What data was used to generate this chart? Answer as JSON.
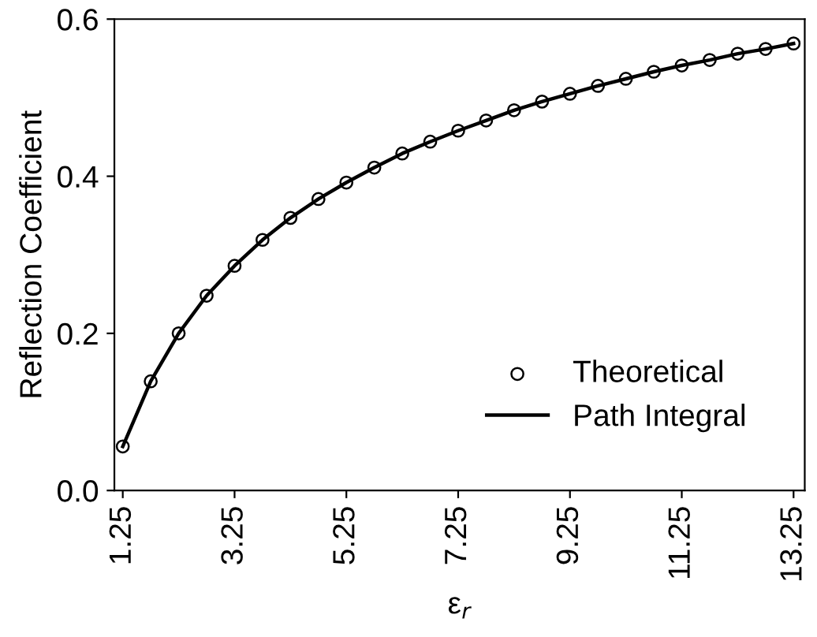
{
  "chart_data": {
    "type": "line",
    "xlabel": "ε$_{r}$",
    "ylabel": "Reflection Coefficient",
    "x": [
      1.25,
      1.75,
      2.25,
      2.75,
      3.25,
      3.75,
      4.25,
      4.75,
      5.25,
      5.75,
      6.25,
      6.75,
      7.25,
      7.75,
      8.25,
      8.75,
      9.25,
      9.75,
      10.25,
      10.75,
      11.25,
      11.75,
      12.25,
      12.75,
      13.25
    ],
    "series": [
      {
        "name": "Theoretical",
        "type": "scatter",
        "marker": "circle",
        "color": "#000000",
        "values": [
          0.056,
          0.139,
          0.2,
          0.248,
          0.286,
          0.319,
          0.347,
          0.371,
          0.392,
          0.411,
          0.429,
          0.444,
          0.458,
          0.471,
          0.484,
          0.495,
          0.505,
          0.515,
          0.524,
          0.533,
          0.541,
          0.548,
          0.556,
          0.562,
          0.569
        ]
      },
      {
        "name": "Path Integral",
        "line_style": "solid",
        "color": "#000000",
        "values": [
          0.056,
          0.139,
          0.2,
          0.248,
          0.286,
          0.319,
          0.347,
          0.371,
          0.392,
          0.411,
          0.429,
          0.444,
          0.458,
          0.471,
          0.484,
          0.495,
          0.505,
          0.515,
          0.524,
          0.533,
          0.541,
          0.548,
          0.556,
          0.562,
          0.569
        ]
      }
    ],
    "xlim": [
      1.1,
      13.45
    ],
    "xticks": [
      1.25,
      3.25,
      5.25,
      7.25,
      9.25,
      11.25,
      13.25
    ],
    "ylim": [
      0.0,
      0.6
    ],
    "yticks": [
      {
        "value": 0.0,
        "label": "0.0"
      },
      {
        "value": 0.2,
        "label": "0.2"
      },
      {
        "value": 0.4,
        "label": "0.4"
      },
      {
        "value": 0.6,
        "label": "0.6"
      }
    ],
    "legend": "lower right"
  }
}
